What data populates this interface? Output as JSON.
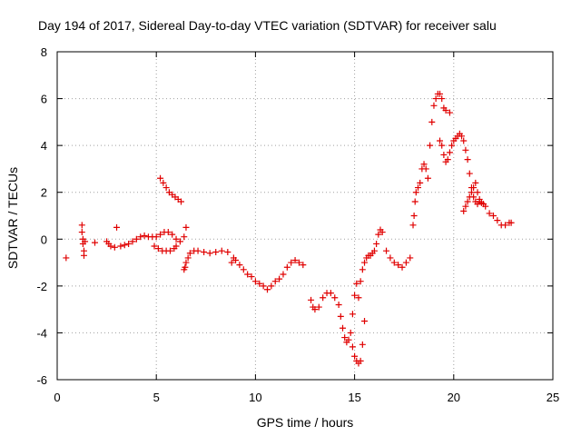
{
  "chart_data": {
    "type": "scatter",
    "title": "Day 194 of 2017, Sidereal Day-to-day VTEC variation (SDTVAR) for receiver salu",
    "xlabel": "GPS time / hours",
    "ylabel": "SDTVAR / TECUs",
    "xlim": [
      0,
      25
    ],
    "ylim": [
      -6,
      8
    ],
    "x_ticks": [
      0,
      5,
      10,
      15,
      20,
      25
    ],
    "y_ticks": [
      -6,
      -4,
      -2,
      0,
      2,
      4,
      6,
      8
    ],
    "x_tick_labels": [
      "0",
      "5",
      "10",
      "15",
      "20",
      "25"
    ],
    "y_tick_labels": [
      "-6",
      "-4",
      "-2",
      "0",
      "2",
      "4",
      "6",
      "8"
    ],
    "grid": true,
    "marker": "plus",
    "color": "#e00000",
    "series": [
      {
        "x": [
          0.45,
          1.25,
          1.25,
          1.3,
          1.3,
          1.35,
          1.35,
          1.4,
          1.9,
          2.5,
          2.6,
          2.7,
          2.9,
          3.0,
          3.2,
          3.4,
          3.6,
          3.8,
          4.0,
          4.2,
          4.4,
          4.6,
          4.8,
          5.0,
          5.2,
          5.4,
          5.6,
          5.8,
          6.0,
          6.2,
          6.4,
          6.5,
          4.9,
          5.1,
          5.3,
          5.5,
          5.7,
          5.9,
          6.0,
          5.2,
          5.35,
          5.5,
          5.65,
          5.8,
          5.95,
          6.1,
          6.25,
          6.4,
          6.45,
          6.5,
          6.6,
          6.7,
          6.9,
          7.1,
          7.4,
          7.7,
          8.0,
          8.3,
          8.6,
          8.8,
          8.9,
          9.0,
          9.2,
          9.4,
          9.6,
          9.8,
          10.0,
          10.2,
          10.4,
          10.6,
          10.8,
          11.0,
          11.2,
          11.4,
          11.6,
          11.8,
          12.0,
          12.2,
          12.4,
          12.8,
          12.9,
          13.0,
          13.2,
          13.4,
          13.6,
          13.8,
          14.0,
          14.2,
          14.3,
          14.4,
          14.5,
          14.6,
          14.7,
          14.8,
          14.9,
          15.0,
          15.1,
          14.9,
          15.0,
          15.1,
          15.2,
          15.3,
          15.4,
          15.5,
          15.2,
          15.3,
          15.4,
          15.5,
          15.6,
          15.7,
          15.8,
          15.9,
          16.0,
          16.1,
          16.2,
          16.3,
          16.4,
          16.6,
          16.8,
          17.0,
          17.2,
          17.4,
          17.6,
          17.8,
          17.95,
          18.0,
          18.05,
          18.1,
          18.2,
          18.3,
          18.4,
          18.5,
          18.6,
          18.7,
          18.8,
          18.9,
          19.0,
          19.1,
          19.2,
          19.3,
          19.4,
          19.5,
          19.6,
          19.8,
          19.3,
          19.4,
          19.5,
          19.6,
          19.7,
          19.8,
          19.9,
          20.0,
          20.1,
          20.2,
          20.3,
          20.4,
          20.5,
          20.6,
          20.7,
          20.8,
          20.9,
          21.0,
          21.1,
          21.2,
          21.3,
          21.4,
          21.5,
          20.5,
          20.6,
          20.7,
          20.8,
          20.9,
          21.0,
          21.1,
          21.2,
          21.3,
          21.6,
          21.8,
          22.0,
          22.2,
          22.4,
          22.6,
          22.8,
          22.9
        ],
        "y": [
          -0.8,
          0.6,
          0.3,
          0.0,
          -0.2,
          -0.5,
          -0.7,
          -0.1,
          -0.15,
          -0.1,
          -0.2,
          -0.3,
          -0.35,
          0.5,
          -0.3,
          -0.25,
          -0.2,
          -0.1,
          0.0,
          0.1,
          0.15,
          0.1,
          0.1,
          0.1,
          0.2,
          0.3,
          0.3,
          0.2,
          0.0,
          -0.1,
          0.1,
          0.5,
          -0.3,
          -0.4,
          -0.5,
          -0.5,
          -0.5,
          -0.4,
          -0.3,
          2.6,
          2.4,
          2.2,
          2.0,
          1.9,
          1.8,
          1.7,
          1.6,
          -1.3,
          -1.2,
          -1.0,
          -0.8,
          -0.6,
          -0.5,
          -0.5,
          -0.55,
          -0.6,
          -0.55,
          -0.5,
          -0.55,
          -1.0,
          -0.8,
          -0.9,
          -1.1,
          -1.3,
          -1.5,
          -1.6,
          -1.8,
          -1.9,
          -2.0,
          -2.15,
          -2.0,
          -1.8,
          -1.7,
          -1.5,
          -1.2,
          -1.0,
          -0.9,
          -1.0,
          -1.1,
          -2.6,
          -2.9,
          -3.0,
          -2.9,
          -2.5,
          -2.3,
          -2.3,
          -2.5,
          -2.8,
          -3.3,
          -3.8,
          -4.2,
          -4.4,
          -4.3,
          -4.0,
          -3.2,
          -2.4,
          -1.9,
          -4.6,
          -5.0,
          -5.2,
          -5.3,
          -5.2,
          -4.5,
          -3.5,
          -2.5,
          -1.8,
          -1.3,
          -1.0,
          -0.8,
          -0.7,
          -0.7,
          -0.6,
          -0.5,
          -0.2,
          0.2,
          0.4,
          0.3,
          -0.5,
          -0.8,
          -1.0,
          -1.1,
          -1.2,
          -1.0,
          -0.8,
          0.6,
          1.0,
          1.6,
          2.0,
          2.2,
          2.4,
          3.0,
          3.2,
          3.0,
          2.6,
          4.0,
          5.0,
          5.7,
          6.0,
          6.2,
          6.2,
          6.0,
          5.6,
          5.5,
          5.4,
          4.2,
          4.0,
          3.6,
          3.3,
          3.4,
          3.7,
          4.0,
          4.2,
          4.3,
          4.4,
          4.5,
          4.4,
          4.2,
          3.8,
          3.4,
          2.8,
          2.2,
          1.8,
          1.6,
          1.5,
          1.6,
          1.55,
          1.5,
          1.2,
          1.4,
          1.6,
          1.8,
          2.0,
          2.2,
          2.4,
          2.0,
          1.7,
          1.4,
          1.1,
          1.0,
          0.8,
          0.6,
          0.6,
          0.7,
          0.7
        ]
      }
    ]
  }
}
